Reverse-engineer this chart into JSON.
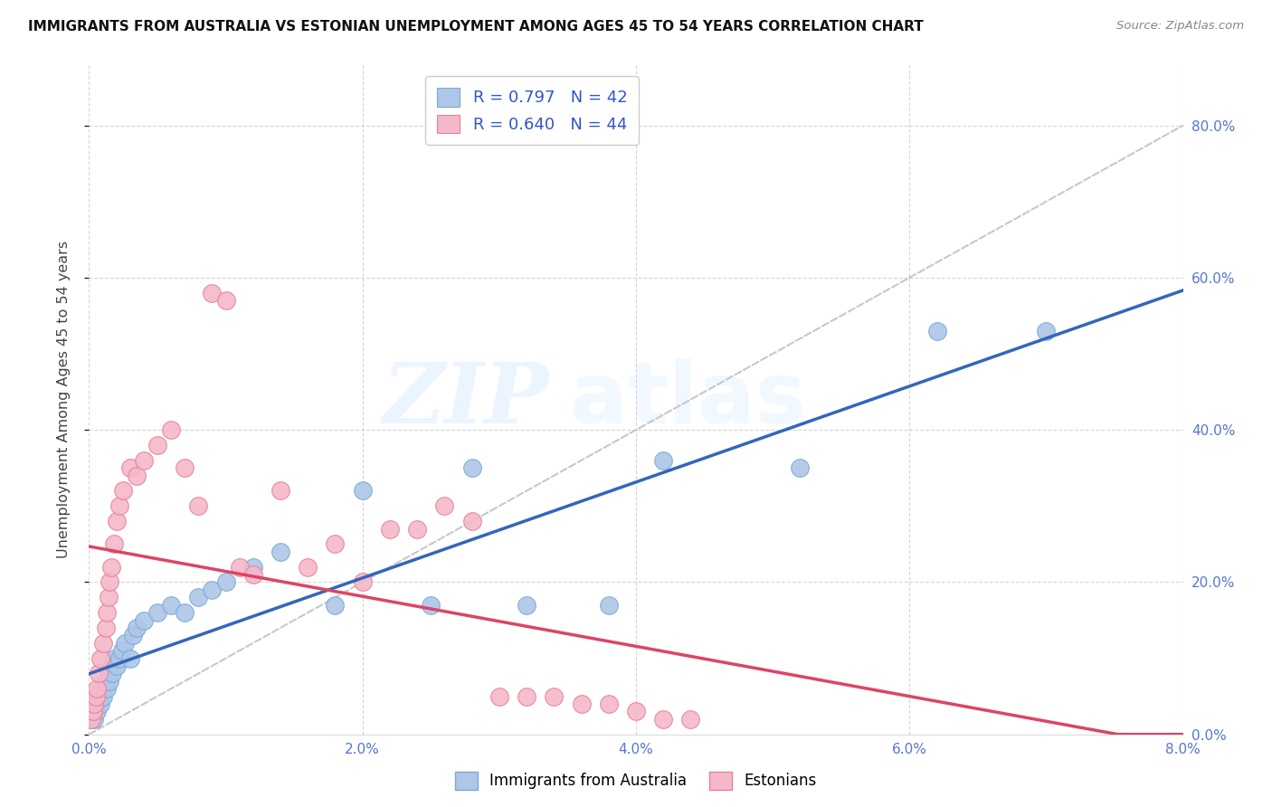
{
  "title": "IMMIGRANTS FROM AUSTRALIA VS ESTONIAN UNEMPLOYMENT AMONG AGES 45 TO 54 YEARS CORRELATION CHART",
  "source": "Source: ZipAtlas.com",
  "ylabel": "Unemployment Among Ages 45 to 54 years",
  "watermark_zip": "ZIP",
  "watermark_atlas": "atlas",
  "australia_color": "#aec6e8",
  "estonia_color": "#f5b8c8",
  "australia_edge": "#7aaad4",
  "estonia_edge": "#e8809a",
  "line_blue": "#3366bb",
  "line_pink": "#dd4466",
  "diag_color": "#c8c8c8",
  "background": "#ffffff",
  "xticks_pct": [
    0.0,
    0.02,
    0.04,
    0.06,
    0.08
  ],
  "yticks_pct": [
    0.0,
    0.2,
    0.4,
    0.6,
    0.8
  ],
  "xlim": [
    0.0,
    0.08
  ],
  "ylim": [
    0.0,
    0.88
  ],
  "legend_r_blue": "R = 0.797",
  "legend_n_blue": "N = 42",
  "legend_r_pink": "R = 0.640",
  "legend_n_pink": "N = 44",
  "legend_label_aus": "Immigrants from Australia",
  "legend_label_est": "Estonians",
  "aus_x": [
    0.0002,
    0.0003,
    0.0004,
    0.0005,
    0.0006,
    0.0007,
    0.0008,
    0.0009,
    0.001,
    0.0012,
    0.0013,
    0.0014,
    0.0015,
    0.0016,
    0.0017,
    0.0018,
    0.002,
    0.0022,
    0.0024,
    0.0026,
    0.003,
    0.0032,
    0.0035,
    0.004,
    0.005,
    0.006,
    0.007,
    0.008,
    0.009,
    0.01,
    0.012,
    0.014,
    0.018,
    0.02,
    0.025,
    0.028,
    0.032,
    0.038,
    0.042,
    0.052,
    0.062,
    0.07
  ],
  "aus_y": [
    0.02,
    0.03,
    0.02,
    0.04,
    0.03,
    0.05,
    0.04,
    0.06,
    0.05,
    0.07,
    0.06,
    0.08,
    0.07,
    0.09,
    0.08,
    0.1,
    0.09,
    0.1,
    0.11,
    0.12,
    0.1,
    0.13,
    0.14,
    0.15,
    0.16,
    0.17,
    0.16,
    0.18,
    0.19,
    0.2,
    0.22,
    0.24,
    0.17,
    0.32,
    0.17,
    0.35,
    0.17,
    0.17,
    0.36,
    0.35,
    0.53,
    0.53
  ],
  "est_x": [
    0.0002,
    0.0003,
    0.0004,
    0.0005,
    0.0006,
    0.0007,
    0.0008,
    0.001,
    0.0012,
    0.0013,
    0.0014,
    0.0015,
    0.0016,
    0.0018,
    0.002,
    0.0022,
    0.0025,
    0.003,
    0.0035,
    0.004,
    0.005,
    0.006,
    0.007,
    0.008,
    0.009,
    0.01,
    0.011,
    0.012,
    0.014,
    0.016,
    0.018,
    0.02,
    0.022,
    0.024,
    0.026,
    0.028,
    0.03,
    0.032,
    0.034,
    0.036,
    0.038,
    0.04,
    0.042,
    0.044
  ],
  "est_y": [
    0.02,
    0.03,
    0.04,
    0.05,
    0.06,
    0.08,
    0.1,
    0.12,
    0.14,
    0.16,
    0.18,
    0.2,
    0.22,
    0.25,
    0.28,
    0.3,
    0.32,
    0.35,
    0.34,
    0.36,
    0.38,
    0.4,
    0.35,
    0.3,
    0.58,
    0.57,
    0.22,
    0.21,
    0.32,
    0.22,
    0.25,
    0.2,
    0.27,
    0.27,
    0.3,
    0.28,
    0.05,
    0.05,
    0.05,
    0.04,
    0.04,
    0.03,
    0.02,
    0.02
  ]
}
